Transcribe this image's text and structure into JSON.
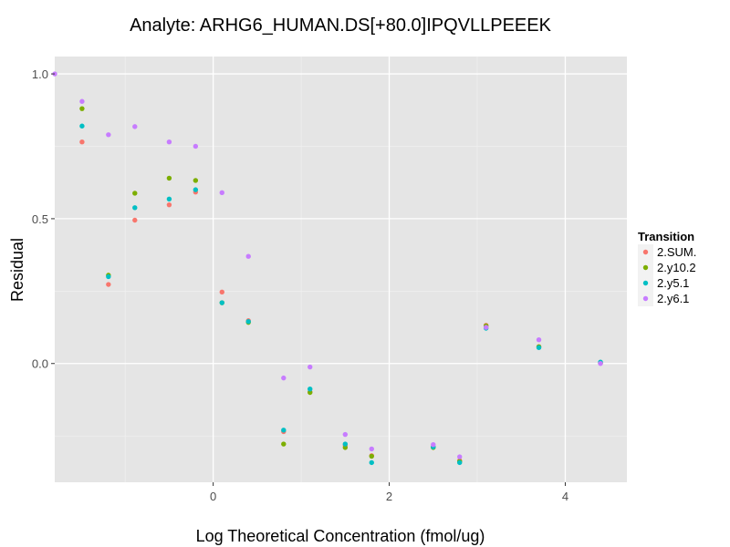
{
  "chart_data": {
    "type": "scatter",
    "title": "Analyte: ARHG6_HUMAN.DS[+80.0]IPQVLLPEEEK",
    "xlabel": "Log Theoretical Concentration (fmol/ug)",
    "ylabel": "Residual",
    "xlim": [
      -1.8,
      4.7
    ],
    "ylim": [
      -0.41,
      1.06
    ],
    "x_ticks": [
      0,
      2,
      4
    ],
    "x_tick_labels": [
      "0",
      "2",
      "4"
    ],
    "y_ticks": [
      0.0,
      0.5,
      1.0
    ],
    "y_tick_labels": [
      "0.0",
      "0.5",
      "1.0"
    ],
    "grid": true,
    "legend_title": "Transition",
    "legend_position": "right",
    "series": [
      {
        "name": "2.SUM.",
        "color": "#F8766D",
        "x": [
          -1.49,
          -1.19,
          -0.89,
          -0.5,
          -0.2,
          0.1,
          0.4,
          0.8,
          1.1,
          1.5,
          1.8,
          2.5,
          2.8,
          3.1,
          3.7,
          4.4
        ],
        "y": [
          0.765,
          0.273,
          0.495,
          0.548,
          0.592,
          0.247,
          0.148,
          -0.235,
          -0.098,
          -0.283,
          -0.318,
          -0.288,
          -0.335,
          0.132,
          0.058,
          0.002
        ]
      },
      {
        "name": "2.y10.2",
        "color": "#7CAE00",
        "x": [
          -1.49,
          -1.19,
          -0.89,
          -0.5,
          -0.2,
          0.1,
          0.4,
          0.8,
          1.1,
          1.5,
          1.8,
          2.5,
          2.8,
          3.1,
          3.7,
          4.4
        ],
        "y": [
          0.88,
          0.305,
          0.588,
          0.64,
          0.632,
          0.21,
          0.142,
          -0.278,
          -0.1,
          -0.29,
          -0.32,
          -0.29,
          -0.338,
          0.13,
          0.058,
          0.002
        ]
      },
      {
        "name": "2.y5.1",
        "color": "#00BFC4",
        "x": [
          -1.49,
          -1.19,
          -0.89,
          -0.5,
          -0.2,
          0.1,
          0.4,
          0.8,
          1.1,
          1.5,
          1.8,
          2.5,
          2.8,
          3.1,
          3.7,
          4.4
        ],
        "y": [
          0.82,
          0.3,
          0.538,
          0.568,
          0.6,
          0.21,
          0.145,
          -0.23,
          -0.088,
          -0.278,
          -0.342,
          -0.288,
          -0.342,
          0.122,
          0.055,
          0.005
        ]
      },
      {
        "name": "2.y6.1",
        "color": "#C77CFF",
        "x": [
          -1.8,
          -1.49,
          -1.19,
          -0.89,
          -0.5,
          -0.2,
          0.1,
          0.4,
          0.8,
          1.1,
          1.5,
          1.8,
          2.5,
          2.8,
          3.1,
          3.7,
          4.4
        ],
        "y": [
          1.0,
          0.905,
          0.79,
          0.818,
          0.765,
          0.75,
          0.59,
          0.37,
          -0.05,
          -0.012,
          -0.245,
          -0.295,
          -0.28,
          -0.322,
          0.125,
          0.082,
          0.0
        ]
      }
    ]
  }
}
